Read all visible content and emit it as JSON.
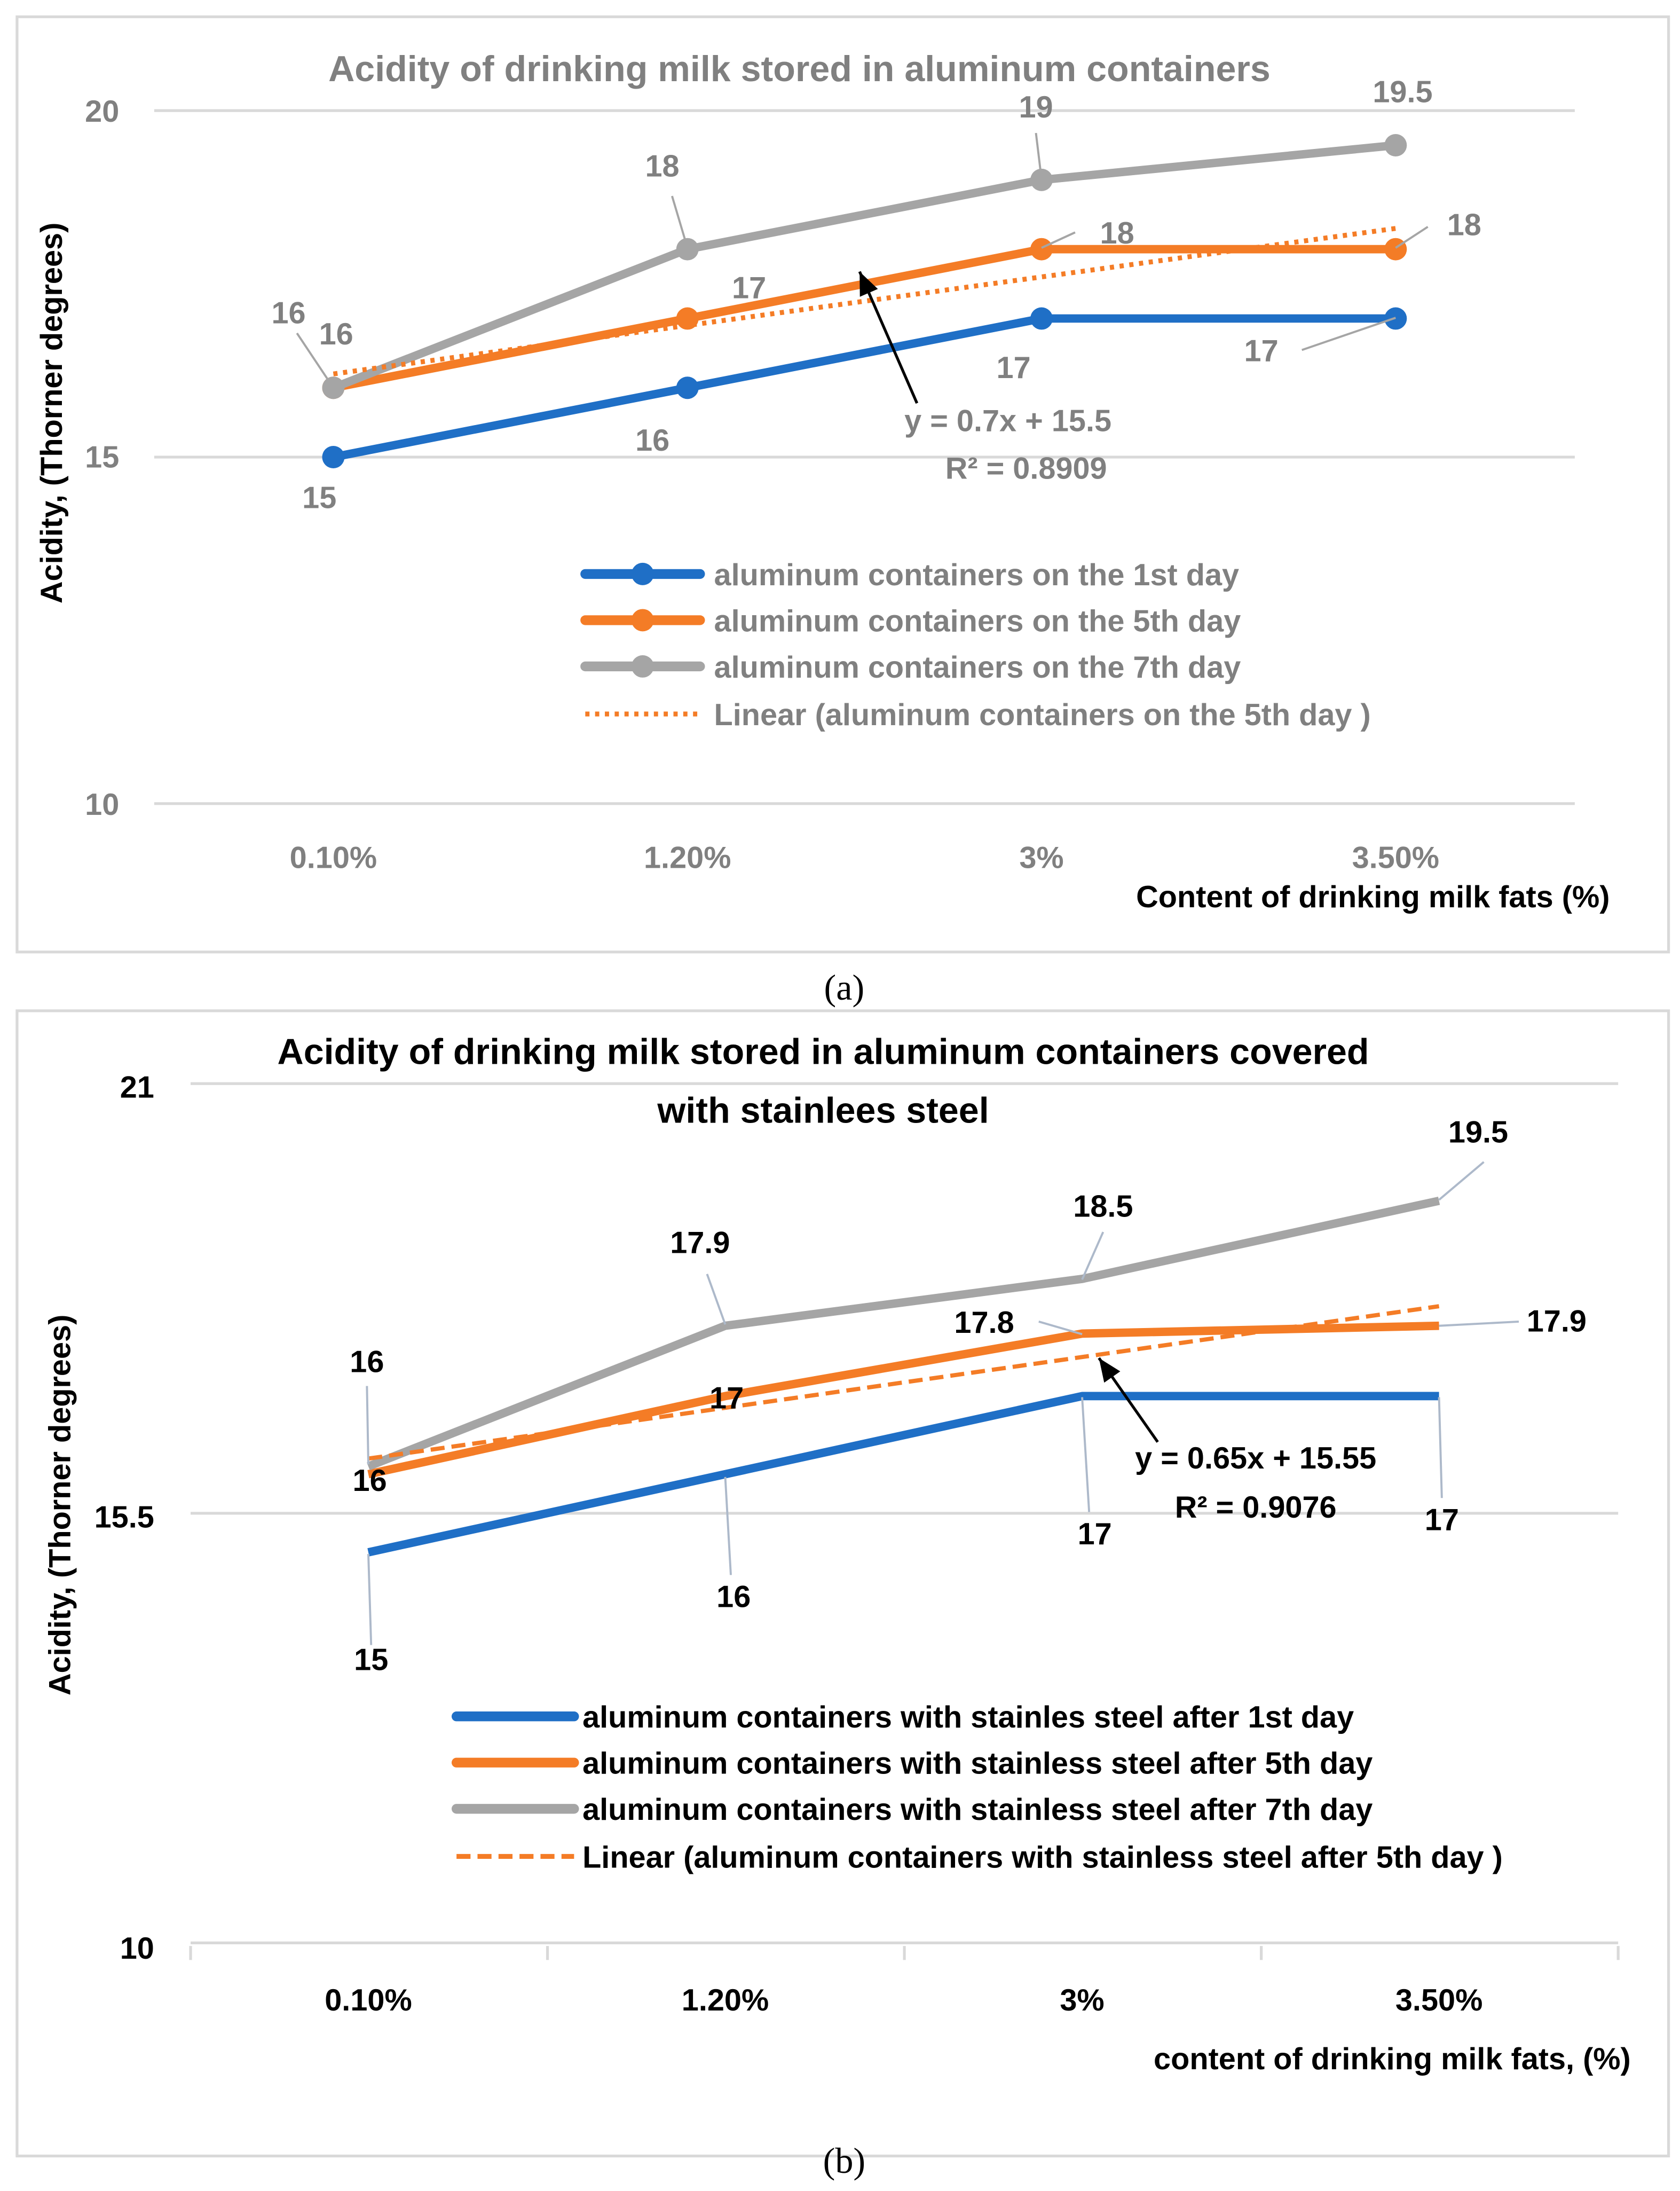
{
  "chart_data": [
    {
      "type": "line",
      "title": "Acidity of drinking milk stored in aluminum containers",
      "xlabel": "Content of drinking milk fats (%)",
      "ylabel": "Acidity, (Thorner degrees)",
      "categories": [
        "0.10%",
        "1.20%",
        "3%",
        "3.50%"
      ],
      "ylim": [
        10,
        20
      ],
      "yticks": [
        "10",
        "15",
        "20"
      ],
      "grid": true,
      "legend": "center-right",
      "caption": "(a)",
      "series": [
        {
          "name": "aluminum containers on the 1st day",
          "color": "#1f6fc6",
          "values": [
            15,
            16,
            17,
            17
          ],
          "labels": [
            "15",
            "16",
            "17",
            "17"
          ]
        },
        {
          "name": "aluminum containers on the 5th day",
          "color": "#f47c26",
          "values": [
            16,
            17,
            18,
            18
          ],
          "labels": [
            "16",
            "17",
            "18",
            "18"
          ]
        },
        {
          "name": "aluminum containers on the 7th day",
          "color": "#a5a5a5",
          "values": [
            16,
            18,
            19,
            19.5
          ],
          "labels": [
            "16",
            "18",
            "19",
            "19.5"
          ]
        }
      ],
      "trendline": {
        "name": "Linear (aluminum containers on the 5th day )",
        "color": "#f47c26",
        "style": "dotted",
        "slope": 0.7,
        "intercept": 15.5,
        "equation": "y = 0.7x + 15.5",
        "r2": "R² = 0.8909"
      }
    },
    {
      "type": "line",
      "title": "Acidity of drinking milk stored in aluminum containers covered",
      "title_line2": "with stainlees steel",
      "xlabel": "content of  drinking milk fats, (%)",
      "ylabel": "Acidity, (Thorner degrees)",
      "categories": [
        "0.10%",
        "1.20%",
        "3%",
        "3.50%"
      ],
      "ylim": [
        10,
        21
      ],
      "yticks": [
        "10",
        "15.5",
        "21"
      ],
      "grid": true,
      "legend": "bottom-right",
      "caption": "(b)",
      "series": [
        {
          "name": "aluminum containers with stainles steel  after 1st day",
          "color": "#1f6fc6",
          "values": [
            15,
            16,
            17,
            17
          ],
          "labels": [
            "15",
            "16",
            "17",
            "17"
          ]
        },
        {
          "name": "aluminum containers with stainless steel  after 5th day",
          "color": "#f47c26",
          "values": [
            16,
            17,
            17.8,
            17.9
          ],
          "labels": [
            "16",
            "17",
            "17.8",
            "17.9"
          ]
        },
        {
          "name": "aluminum containers with stainless steel  after 7th day",
          "color": "#a5a5a5",
          "values": [
            16.1,
            17.9,
            18.5,
            19.5
          ],
          "labels": [
            "16",
            "17.9",
            "18.5",
            "19.5"
          ]
        }
      ],
      "trendline": {
        "name": "Linear (aluminum containers with stainless steel  after 5th day )",
        "color": "#f47c26",
        "style": "dashed",
        "slope": 0.65,
        "intercept": 15.55,
        "equation": "y = 0.65x + 15.55",
        "r2": "R² = 0.9076"
      }
    }
  ]
}
